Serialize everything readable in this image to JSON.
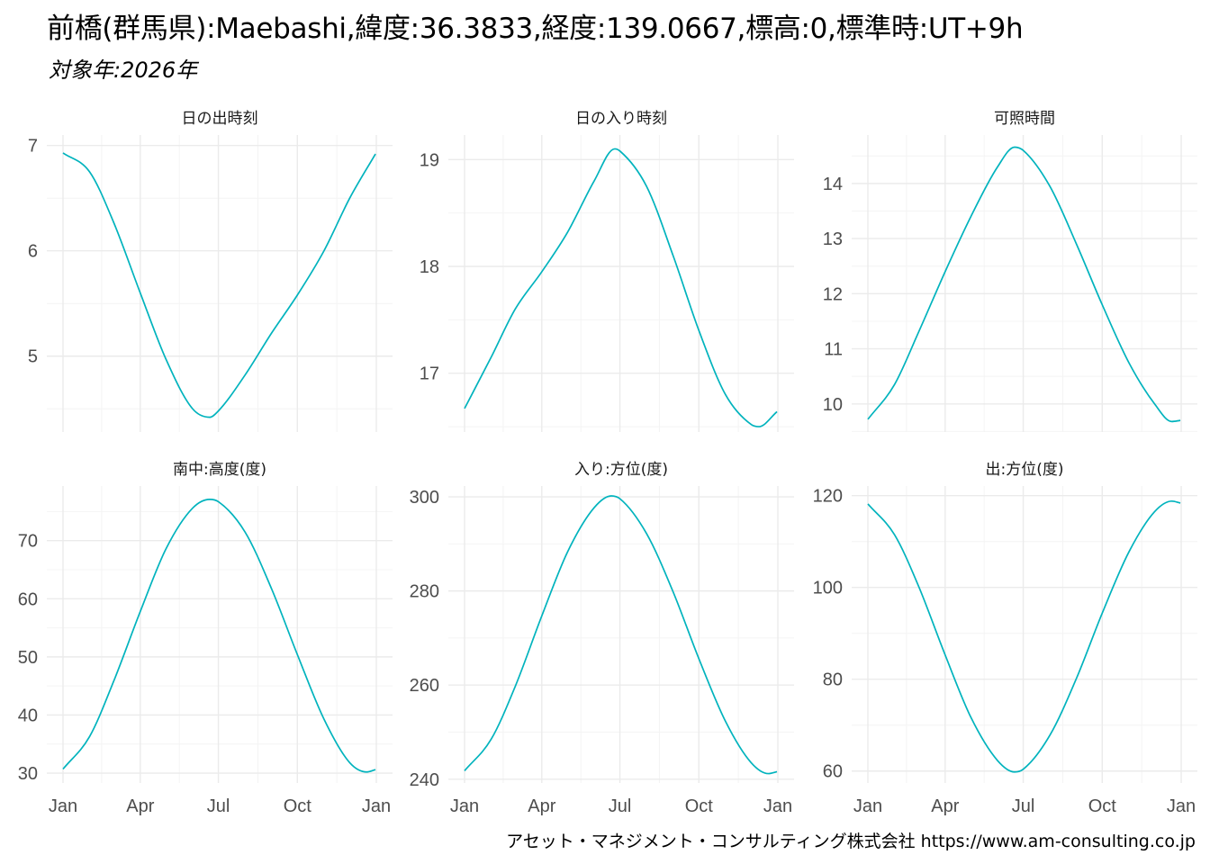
{
  "title": "前橋(群馬県):Maebashi,緯度:36.3833,経度:139.0667,標高:0,標準時:UT+9h",
  "subtitle": "対象年:2026年",
  "caption": "アセット・マネジメント・コンサルティング株式会社 https://www.am-consulting.co.jp",
  "colors": {
    "line": "#00b3bd",
    "grid_major": "#ebebeb",
    "grid_minor": "#f4f4f4",
    "text": "#4d4d4d"
  },
  "chart_data": [
    {
      "type": "line",
      "title": "日の出時刻",
      "x_tick_labels": [
        "Jan",
        "Apr",
        "Jul",
        "Oct",
        "Jan"
      ],
      "y_ticks": [
        5,
        6,
        7
      ],
      "ylim": [
        4.28,
        7.1
      ],
      "x": [
        "Jan 1",
        "Feb 1",
        "Mar 1",
        "Apr 1",
        "May 1",
        "Jun 1",
        "Jun 21",
        "Jul 1",
        "Aug 1",
        "Sep 1",
        "Oct 1",
        "Nov 1",
        "Dec 1",
        "Dec 31"
      ],
      "values": [
        6.93,
        6.75,
        6.27,
        5.6,
        4.97,
        4.5,
        4.42,
        4.48,
        4.82,
        5.22,
        5.58,
        6.0,
        6.5,
        6.92
      ]
    },
    {
      "type": "line",
      "title": "日の入り時刻",
      "x_tick_labels": [
        "Jan",
        "Apr",
        "Jul",
        "Oct",
        "Jan"
      ],
      "y_ticks": [
        17,
        18,
        19
      ],
      "ylim": [
        16.45,
        19.23
      ],
      "x": [
        "Jan 1",
        "Feb 1",
        "Mar 1",
        "Apr 1",
        "May 1",
        "Jun 1",
        "Jun 25",
        "Jul 1",
        "Aug 1",
        "Sep 1",
        "Oct 1",
        "Nov 1",
        "Dec 1",
        "Dec 10",
        "Dec 31"
      ],
      "values": [
        16.67,
        17.15,
        17.6,
        17.95,
        18.32,
        18.8,
        19.1,
        19.08,
        18.75,
        18.1,
        17.4,
        16.8,
        16.52,
        16.5,
        16.64
      ]
    },
    {
      "type": "line",
      "title": "可照時間",
      "x_tick_labels": [
        "Jan",
        "Apr",
        "Jul",
        "Oct",
        "Jan"
      ],
      "y_ticks": [
        10,
        11,
        12,
        13,
        14
      ],
      "ylim": [
        9.49,
        14.88
      ],
      "x": [
        "Jan 1",
        "Feb 1",
        "Mar 1",
        "Apr 1",
        "May 1",
        "Jun 1",
        "Jun 21",
        "Jul 1",
        "Aug 1",
        "Sep 1",
        "Oct 1",
        "Nov 1",
        "Dec 1",
        "Dec 21",
        "Dec 31"
      ],
      "values": [
        9.72,
        10.35,
        11.3,
        12.4,
        13.4,
        14.3,
        14.66,
        14.6,
        13.95,
        12.9,
        11.8,
        10.75,
        10.0,
        9.68,
        9.7
      ]
    },
    {
      "type": "line",
      "title": "南中:高度(度)",
      "x_tick_labels": [
        "Jan",
        "Apr",
        "Jul",
        "Oct",
        "Jan"
      ],
      "y_ticks": [
        30,
        40,
        50,
        60,
        70
      ],
      "ylim": [
        28.3,
        79.4
      ],
      "x": [
        "Jan 1",
        "Feb 1",
        "Mar 1",
        "Apr 1",
        "May 1",
        "Jun 1",
        "Jun 21",
        "Jul 1",
        "Aug 1",
        "Sep 1",
        "Oct 1",
        "Nov 1",
        "Dec 1",
        "Dec 21",
        "Dec 31"
      ],
      "values": [
        30.7,
        36.3,
        45.8,
        57.8,
        68.6,
        75.6,
        77.1,
        76.7,
        71.5,
        61.7,
        50.4,
        39.3,
        31.8,
        30.2,
        30.6
      ]
    },
    {
      "type": "line",
      "title": "入り:方位(度)",
      "x_tick_labels": [
        "Jan",
        "Apr",
        "Jul",
        "Oct",
        "Jan"
      ],
      "y_ticks": [
        240,
        260,
        280,
        300
      ],
      "ylim": [
        239.2,
        302.3
      ],
      "x": [
        "Jan 1",
        "Feb 1",
        "Mar 1",
        "Apr 1",
        "May 1",
        "Jun 1",
        "Jun 21",
        "Jul 1",
        "Aug 1",
        "Sep 1",
        "Oct 1",
        "Nov 1",
        "Dec 1",
        "Dec 21",
        "Dec 31"
      ],
      "values": [
        241.8,
        248.5,
        259.7,
        274.7,
        288.3,
        297.7,
        300.2,
        299.6,
        292.2,
        279.8,
        265.6,
        252.3,
        243.5,
        241.2,
        241.6
      ]
    },
    {
      "type": "line",
      "title": "出:方位(度)",
      "x_tick_labels": [
        "Jan",
        "Apr",
        "Jul",
        "Oct",
        "Jan"
      ],
      "y_ticks": [
        60,
        80,
        100,
        120
      ],
      "ylim": [
        57.4,
        122.1
      ],
      "x": [
        "Jan 1",
        "Feb 1",
        "Mar 1",
        "Apr 1",
        "May 1",
        "Jun 1",
        "Jun 21",
        "Jul 1",
        "Aug 1",
        "Sep 1",
        "Oct 1",
        "Nov 1",
        "Dec 1",
        "Dec 21",
        "Dec 31"
      ],
      "values": [
        118.2,
        111.5,
        100.3,
        85.3,
        71.7,
        62.3,
        59.8,
        60.4,
        67.8,
        80.2,
        94.4,
        107.7,
        116.5,
        118.8,
        118.4
      ]
    }
  ]
}
